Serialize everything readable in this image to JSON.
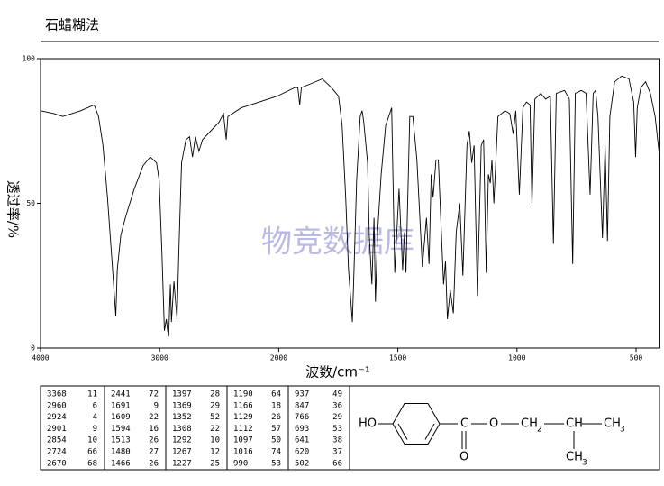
{
  "title": "石蜡糊法",
  "chart_data": {
    "type": "line",
    "xlabel": "波数/cm⁻¹",
    "ylabel": "透过率/%",
    "watermark": "物竞数据库",
    "x": [
      4000,
      3888,
      3813,
      3663,
      3550,
      3513,
      3476,
      3438,
      3400,
      3368,
      3356,
      3326,
      3288,
      3213,
      3139,
      3079,
      3026,
      3004,
      2981,
      2960,
      2944,
      2933,
      2924,
      2910,
      2901,
      2880,
      2854,
      2839,
      2816,
      2779,
      2749,
      2724,
      2700,
      2670,
      2640,
      2502,
      2464,
      2441,
      2427,
      2315,
      2165,
      2015,
      1932,
      1920,
      1912,
      1905,
      1875,
      1817,
      1779,
      1749,
      1734,
      1719,
      1707,
      1691,
      1684,
      1673,
      1658,
      1650,
      1643,
      1627,
      1620,
      1609,
      1600,
      1594,
      1585,
      1570,
      1551,
      1526,
      1513,
      1495,
      1480,
      1472,
      1466,
      1450,
      1437,
      1420,
      1397,
      1380,
      1369,
      1360,
      1352,
      1340,
      1330,
      1320,
      1308,
      1300,
      1292,
      1280,
      1267,
      1255,
      1240,
      1227,
      1210,
      1200,
      1190,
      1180,
      1166,
      1150,
      1140,
      1129,
      1120,
      1112,
      1105,
      1097,
      1080,
      1050,
      1030,
      1016,
      1005,
      990,
      975,
      960,
      945,
      937,
      925,
      900,
      880,
      860,
      847,
      835,
      800,
      780,
      766,
      755,
      730,
      710,
      693,
      680,
      670,
      660,
      641,
      630,
      620,
      610,
      590,
      560,
      530,
      510,
      502,
      495,
      480,
      460,
      440,
      420,
      400
    ],
    "series": [
      {
        "color": "#000000",
        "values": [
          82,
          81,
          80,
          82,
          84,
          80,
          70,
          52,
          30,
          11,
          27,
          39,
          45,
          55,
          63,
          66,
          64,
          58,
          33,
          6,
          10,
          6,
          4,
          22,
          9,
          23,
          10,
          33,
          64,
          72,
          73,
          66,
          73,
          68,
          72,
          78,
          81,
          72,
          80,
          83,
          85,
          87,
          90,
          90,
          84,
          90,
          91,
          93,
          90,
          87,
          77,
          52,
          27,
          9,
          27,
          58,
          80,
          82,
          78,
          64,
          39,
          22,
          45,
          16,
          40,
          60,
          77,
          83,
          26,
          55,
          27,
          40,
          26,
          80,
          80,
          65,
          28,
          45,
          29,
          60,
          52,
          65,
          65,
          45,
          22,
          30,
          10,
          20,
          12,
          40,
          50,
          25,
          70,
          75,
          64,
          70,
          18,
          70,
          72,
          26,
          60,
          57,
          65,
          50,
          80,
          82,
          81,
          74,
          82,
          53,
          83,
          85,
          84,
          49,
          86,
          88,
          86,
          87,
          36,
          88,
          89,
          86,
          29,
          88,
          89,
          88,
          53,
          88,
          89,
          80,
          38,
          70,
          37,
          80,
          92,
          94,
          93,
          85,
          66,
          83,
          90,
          92,
          88,
          80,
          65
        ]
      }
    ],
    "xlim": [
      4000,
      400
    ],
    "xticks": [
      4000,
      3000,
      2000,
      1500,
      1000,
      500
    ],
    "ylim": [
      0,
      100
    ],
    "yticks": [
      0,
      50,
      100
    ]
  },
  "peak_table": {
    "rows": [
      [
        3368,
        11,
        2441,
        72,
        1397,
        28,
        1190,
        64,
        937,
        49
      ],
      [
        2960,
        6,
        1691,
        9,
        1369,
        29,
        1166,
        18,
        847,
        36
      ],
      [
        2924,
        4,
        1609,
        22,
        1352,
        52,
        1129,
        26,
        766,
        29
      ],
      [
        2901,
        9,
        1594,
        16,
        1308,
        22,
        1112,
        57,
        693,
        53
      ],
      [
        2854,
        10,
        1513,
        26,
        1292,
        10,
        1097,
        50,
        641,
        38
      ],
      [
        2724,
        66,
        1480,
        27,
        1267,
        12,
        1016,
        74,
        620,
        37
      ],
      [
        2670,
        68,
        1466,
        26,
        1227,
        25,
        990,
        53,
        502,
        66
      ]
    ]
  },
  "structure": {
    "hydroxyl": "HO",
    "carbon": "C",
    "ester_oxygen": "O",
    "carbonyl_oxygen": "O",
    "methylene": "CH",
    "methylene_sub": "2",
    "methine": "CH",
    "methyl_1": "CH",
    "methyl_1_sub": "3",
    "methyl_2": "CH",
    "methyl_2_sub": "3"
  }
}
